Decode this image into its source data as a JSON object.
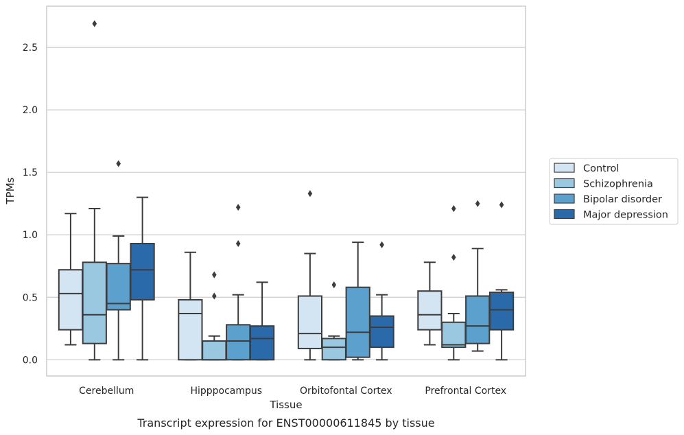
{
  "chart_data": {
    "type": "box",
    "xlabel": "Tissue",
    "ylabel": "TPMs",
    "caption": "Transcript expression for ENST00000611845 by tissue",
    "ylim": [
      -0.13,
      2.83
    ],
    "yticks": [
      0.0,
      0.5,
      1.0,
      1.5,
      2.0,
      2.5
    ],
    "ytick_labels": [
      "0.0",
      "0.5",
      "1.0",
      "1.5",
      "2.0",
      "2.5"
    ],
    "grid": true,
    "legend_position": "right",
    "categories": [
      "Cerebellum",
      "Hipppocampus",
      "Orbitofontal Cortex",
      "Prefrontal Cortex"
    ],
    "series": [
      {
        "name": "Control",
        "color": "#d3e4f3",
        "boxes": [
          {
            "whislo": 0.12,
            "q1": 0.24,
            "med": 0.53,
            "q3": 0.72,
            "whishi": 1.17,
            "fliers": []
          },
          {
            "whislo": 0.0,
            "q1": 0.0,
            "med": 0.37,
            "q3": 0.48,
            "whishi": 0.86,
            "fliers": []
          },
          {
            "whislo": 0.0,
            "q1": 0.09,
            "med": 0.21,
            "q3": 0.51,
            "whishi": 0.85,
            "fliers": [
              1.33
            ]
          },
          {
            "whislo": 0.12,
            "q1": 0.24,
            "med": 0.36,
            "q3": 0.55,
            "whishi": 0.78,
            "fliers": []
          }
        ]
      },
      {
        "name": "Schizophrenia",
        "color": "#9ac8e0",
        "boxes": [
          {
            "whislo": 0.0,
            "q1": 0.13,
            "med": 0.36,
            "q3": 0.78,
            "whishi": 1.21,
            "fliers": [
              2.69
            ]
          },
          {
            "whislo": 0.0,
            "q1": 0.0,
            "med": 0.0,
            "q3": 0.15,
            "whishi": 0.19,
            "fliers": [
              0.51,
              0.68
            ]
          },
          {
            "whislo": 0.0,
            "q1": 0.0,
            "med": 0.1,
            "q3": 0.17,
            "whishi": 0.19,
            "fliers": [
              0.6
            ]
          },
          {
            "whislo": 0.0,
            "q1": 0.1,
            "med": 0.12,
            "q3": 0.3,
            "whishi": 0.37,
            "fliers": [
              0.82,
              1.21
            ]
          }
        ]
      },
      {
        "name": "Bipolar disorder",
        "color": "#5ca0cd",
        "boxes": [
          {
            "whislo": 0.0,
            "q1": 0.4,
            "med": 0.45,
            "q3": 0.77,
            "whishi": 0.99,
            "fliers": [
              1.57
            ]
          },
          {
            "whislo": 0.0,
            "q1": 0.0,
            "med": 0.15,
            "q3": 0.28,
            "whishi": 0.52,
            "fliers": [
              0.93,
              1.22
            ]
          },
          {
            "whislo": 0.0,
            "q1": 0.02,
            "med": 0.22,
            "q3": 0.58,
            "whishi": 0.94,
            "fliers": []
          },
          {
            "whislo": 0.07,
            "q1": 0.13,
            "med": 0.27,
            "q3": 0.51,
            "whishi": 0.89,
            "fliers": [
              1.25
            ]
          }
        ]
      },
      {
        "name": "Major depression",
        "color": "#2a6aab",
        "boxes": [
          {
            "whislo": 0.0,
            "q1": 0.48,
            "med": 0.72,
            "q3": 0.93,
            "whishi": 1.3,
            "fliers": []
          },
          {
            "whislo": 0.0,
            "q1": 0.0,
            "med": 0.17,
            "q3": 0.27,
            "whishi": 0.62,
            "fliers": []
          },
          {
            "whislo": 0.0,
            "q1": 0.1,
            "med": 0.26,
            "q3": 0.35,
            "whishi": 0.52,
            "fliers": [
              0.92
            ]
          },
          {
            "whislo": 0.0,
            "q1": 0.24,
            "med": 0.4,
            "q3": 0.54,
            "whishi": 0.56,
            "fliers": [
              1.24
            ]
          }
        ]
      }
    ]
  }
}
